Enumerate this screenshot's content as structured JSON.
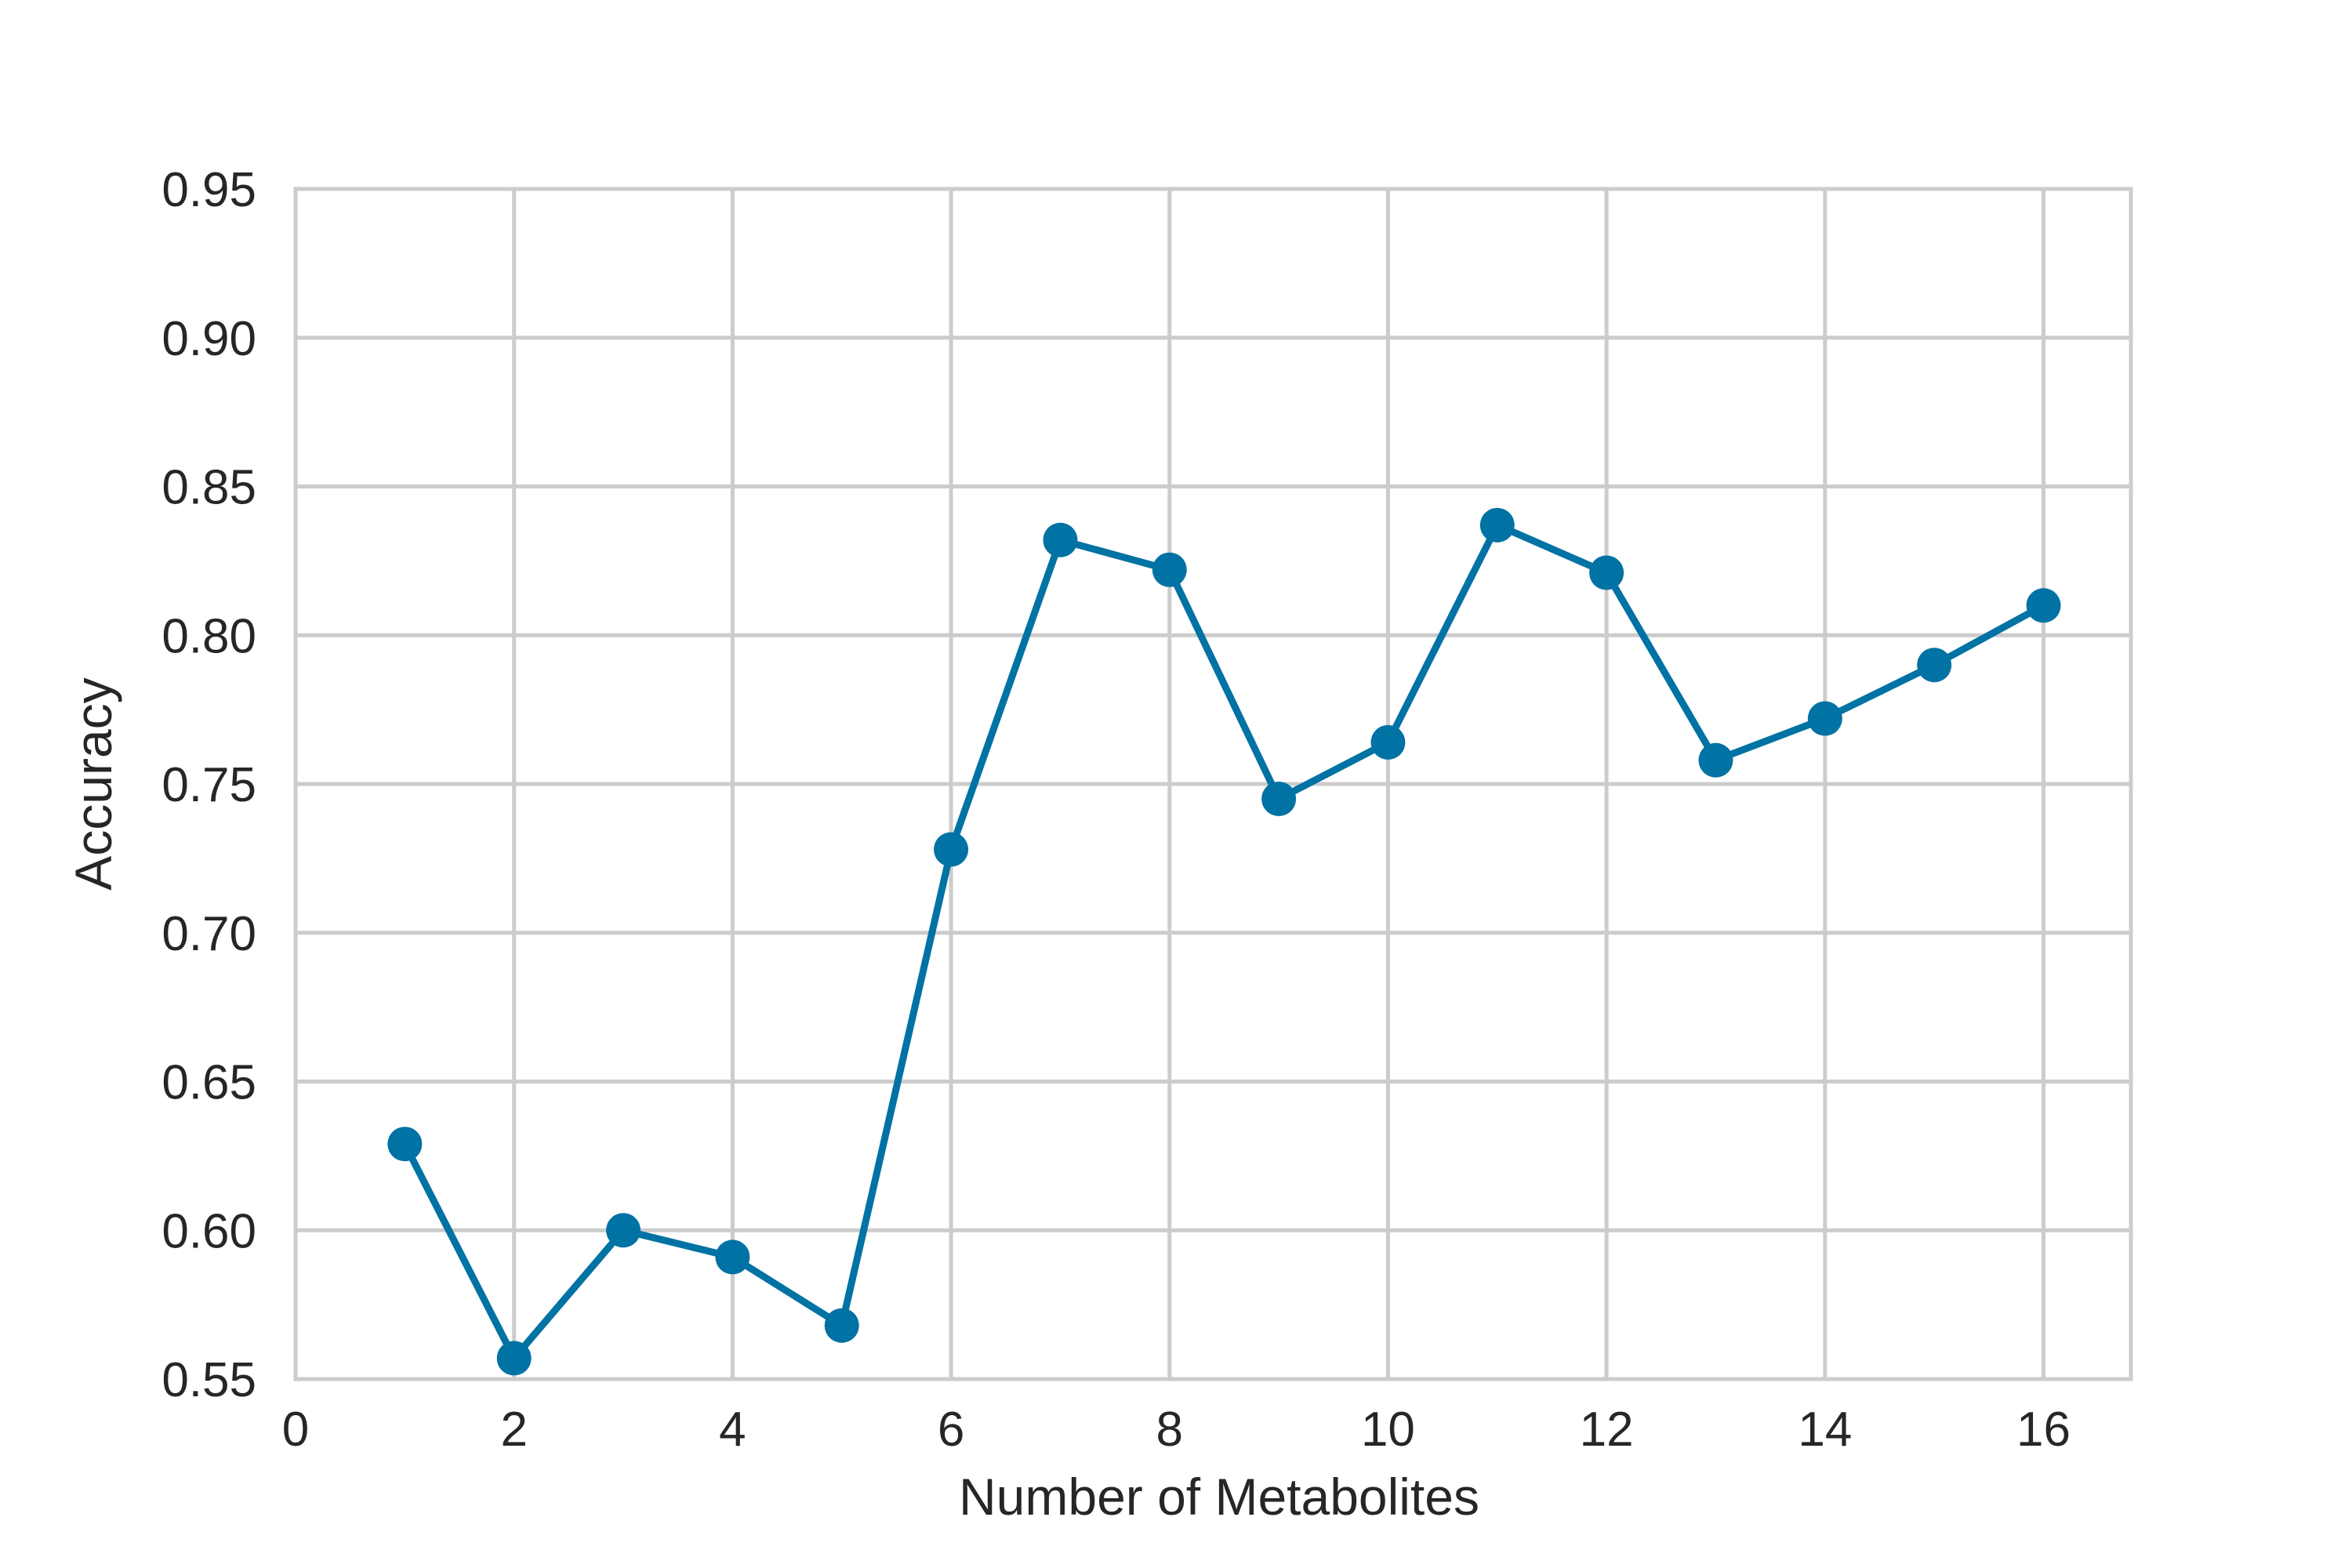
{
  "chart_data": {
    "type": "line",
    "title": "",
    "xlabel": "Number of Metabolites",
    "ylabel": "Accuracy",
    "xlim": [
      0,
      16.8
    ],
    "ylim": [
      0.55,
      0.95
    ],
    "x_ticks": [
      0,
      2,
      4,
      6,
      8,
      10,
      12,
      14,
      16
    ],
    "y_ticks": [
      0.55,
      0.6,
      0.65,
      0.7,
      0.75,
      0.8,
      0.85,
      0.9,
      0.95
    ],
    "x_tick_labels": [
      "0",
      "2",
      "4",
      "6",
      "8",
      "10",
      "12",
      "14",
      "16"
    ],
    "y_tick_labels": [
      "0.55",
      "0.60",
      "0.65",
      "0.70",
      "0.75",
      "0.80",
      "0.85",
      "0.90",
      "0.95"
    ],
    "grid": true,
    "legend": "none",
    "series": [
      {
        "x": [
          1,
          2,
          3,
          4,
          5,
          6,
          7,
          8,
          9,
          10,
          11,
          12,
          13,
          14,
          15,
          16
        ],
        "values": [
          0.629,
          0.557,
          0.6,
          0.591,
          0.568,
          0.728,
          0.832,
          0.822,
          0.745,
          0.764,
          0.837,
          0.821,
          0.758,
          0.772,
          0.79,
          0.81
        ],
        "color": "#0072a3",
        "marker": "circle"
      }
    ]
  }
}
